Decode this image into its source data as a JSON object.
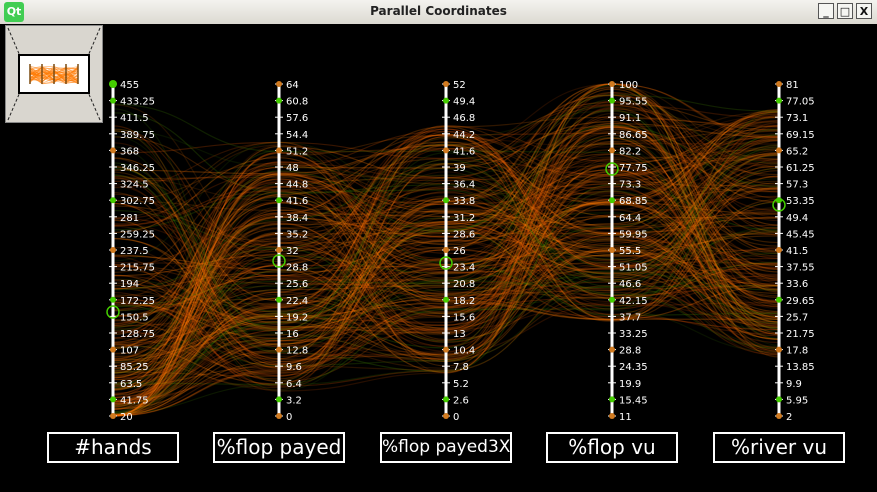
{
  "window": {
    "title": "Parallel Coordinates",
    "icon_label": "Qt",
    "minimize_label": "_",
    "maximize_label": "□",
    "close_label": "X"
  },
  "colors": {
    "background": "#000000",
    "axis": "#ffffff",
    "line_main": "#ff7a00",
    "line_alt": "#c84a00",
    "line_green": "#3d7a00",
    "marker": "#44cc00"
  },
  "axes": [
    {
      "label": "#hands",
      "ticks": [
        "455",
        "433.25",
        "411.5",
        "389.75",
        "368",
        "346.25",
        "324.5",
        "302.75",
        "281",
        "259.25",
        "237.5",
        "215.75",
        "194",
        "172.25",
        "150.5",
        "128.75",
        "107",
        "85.25",
        "63.5",
        "41.75",
        "20"
      ]
    },
    {
      "label": "%flop payed",
      "ticks": [
        "64",
        "60.8",
        "57.6",
        "54.4",
        "51.2",
        "48",
        "44.8",
        "41.6",
        "38.4",
        "35.2",
        "32",
        "28.8",
        "25.6",
        "22.4",
        "19.2",
        "16",
        "12.8",
        "9.6",
        "6.4",
        "3.2",
        "0"
      ]
    },
    {
      "label": "%flop payed3X",
      "ticks": [
        "52",
        "49.4",
        "46.8",
        "44.2",
        "41.6",
        "39",
        "36.4",
        "33.8",
        "31.2",
        "28.6",
        "26",
        "23.4",
        "20.8",
        "18.2",
        "15.6",
        "13",
        "10.4",
        "7.8",
        "5.2",
        "2.6",
        "0"
      ]
    },
    {
      "label": "%flop vu",
      "ticks": [
        "100",
        "95.55",
        "91.1",
        "86.65",
        "82.2",
        "77.75",
        "73.3",
        "68.85",
        "64.4",
        "59.95",
        "55.5",
        "51.05",
        "46.6",
        "42.15",
        "37.7",
        "33.25",
        "28.8",
        "24.35",
        "19.9",
        "15.45",
        "11"
      ]
    },
    {
      "label": "%river vu",
      "ticks": [
        "81",
        "77.05",
        "73.1",
        "69.15",
        "65.2",
        "61.25",
        "57.3",
        "53.35",
        "49.4",
        "45.45",
        "41.5",
        "37.55",
        "33.6",
        "29.65",
        "25.7",
        "21.75",
        "17.8",
        "13.85",
        "9.9",
        "5.95",
        "2"
      ]
    }
  ]
}
